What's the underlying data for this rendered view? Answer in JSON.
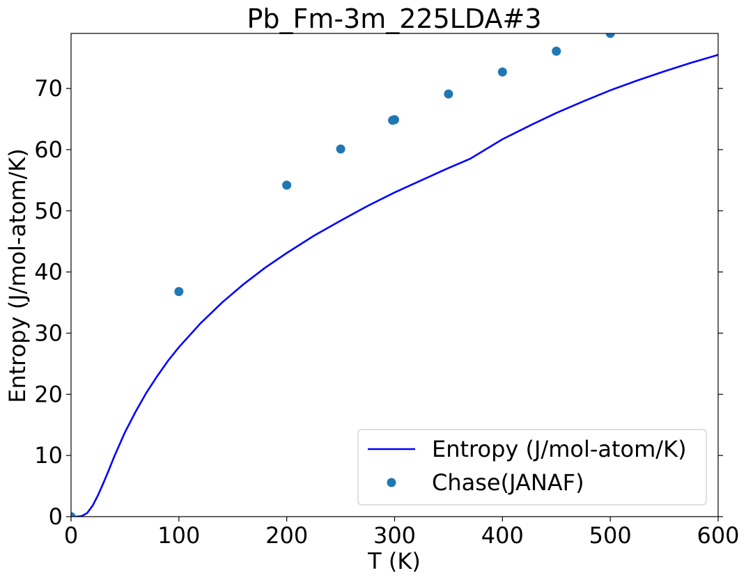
{
  "chart_data": {
    "type": "line",
    "title": "Pb_Fm-3m_225LDA#3",
    "xlabel": "T (K)",
    "ylabel": "Entropy (J/mol-atom/K)",
    "xlim": [
      0,
      600
    ],
    "ylim": [
      0,
      79
    ],
    "xticks": [
      0,
      100,
      200,
      300,
      400,
      500,
      600
    ],
    "yticks": [
      0,
      10,
      20,
      30,
      40,
      50,
      60,
      70
    ],
    "grid": false,
    "legend_position": "lower-right",
    "series": [
      {
        "name": "Entropy (J/mol-atom/K)",
        "kind": "line",
        "color": "#0000ff",
        "points": [
          [
            0,
            0.0
          ],
          [
            5,
            0.0
          ],
          [
            10,
            0.1
          ],
          [
            15,
            0.6
          ],
          [
            20,
            1.8
          ],
          [
            25,
            3.5
          ],
          [
            30,
            5.5
          ],
          [
            35,
            7.6
          ],
          [
            40,
            9.8
          ],
          [
            45,
            11.8
          ],
          [
            50,
            13.8
          ],
          [
            60,
            17.2
          ],
          [
            70,
            20.3
          ],
          [
            80,
            23.0
          ],
          [
            90,
            25.5
          ],
          [
            100,
            27.7
          ],
          [
            120,
            31.6
          ],
          [
            140,
            35.0
          ],
          [
            160,
            38.0
          ],
          [
            180,
            40.7
          ],
          [
            200,
            43.1
          ],
          [
            225,
            45.9
          ],
          [
            250,
            48.4
          ],
          [
            275,
            50.8
          ],
          [
            300,
            53.0
          ],
          [
            325,
            55.0
          ],
          [
            350,
            57.0
          ],
          [
            370,
            58.5
          ],
          [
            400,
            61.7
          ],
          [
            425,
            63.9
          ],
          [
            450,
            66.0
          ],
          [
            475,
            67.9
          ],
          [
            500,
            69.7
          ],
          [
            525,
            71.3
          ],
          [
            550,
            72.8
          ],
          [
            575,
            74.2
          ],
          [
            600,
            75.5
          ]
        ]
      },
      {
        "name": "Chase(JANAF)",
        "kind": "scatter",
        "color": "#1f77b4",
        "points": [
          [
            0,
            0.0
          ],
          [
            100,
            36.8
          ],
          [
            200,
            54.2
          ],
          [
            250,
            60.1
          ],
          [
            298.15,
            64.8
          ],
          [
            300,
            64.9
          ],
          [
            350,
            69.1
          ],
          [
            400,
            72.7
          ],
          [
            450,
            76.1
          ],
          [
            500,
            79.0
          ]
        ]
      }
    ]
  }
}
